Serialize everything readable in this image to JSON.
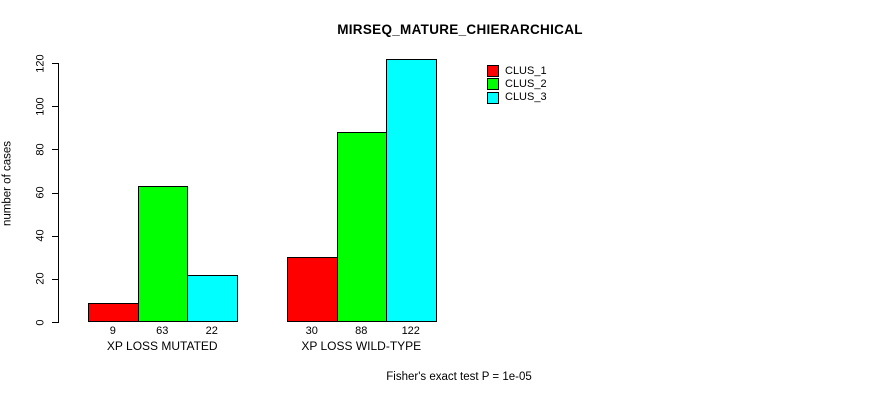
{
  "chart_data": {
    "type": "bar",
    "title": "MIRSEQ_MATURE_CHIERARCHICAL",
    "ylabel": "number of cases",
    "xlabel": "",
    "categories": [
      "XP LOSS MUTATED",
      "XP LOSS WILD-TYPE"
    ],
    "series": [
      {
        "name": "CLUS_1",
        "color": "#ff0000",
        "values": [
          9,
          30
        ]
      },
      {
        "name": "CLUS_2",
        "color": "#00ff00",
        "values": [
          63,
          88
        ]
      },
      {
        "name": "CLUS_3",
        "color": "#00ffff",
        "values": [
          22,
          122
        ]
      }
    ],
    "yticks": [
      0,
      20,
      40,
      60,
      80,
      100,
      120
    ],
    "ylim": [
      0,
      122
    ],
    "grid": false,
    "legend_position": "top-right",
    "legend_entries": [
      "CLUS_1",
      "CLUS_2",
      "CLUS_3"
    ],
    "annotation": "Fisher's exact test P = 1e-05",
    "colors": {
      "axis": "#000000",
      "background": "#ffffff",
      "clus_1": "#ff0000",
      "clus_2": "#00ff00",
      "clus_3": "#00ffff"
    }
  }
}
